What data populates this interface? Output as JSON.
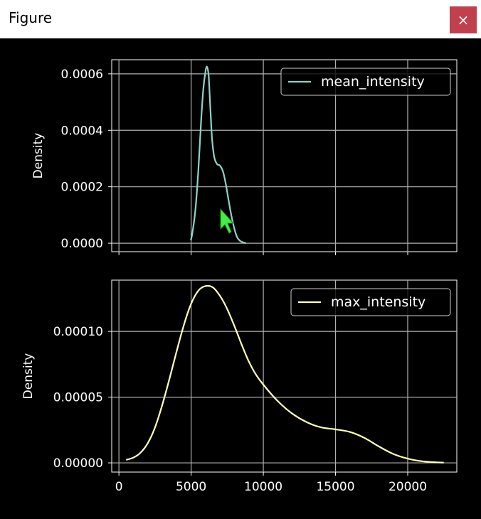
{
  "window": {
    "title": "Figure",
    "close_glyph": "×"
  },
  "colors": {
    "background": "#000000",
    "grid": "#b0b0b0",
    "axis": "#ffffff",
    "text": "#ffffff",
    "series_top": "#8dd3c7",
    "series_bottom": "#ffffb3",
    "cursor": "#44ee44"
  },
  "chart_data": [
    {
      "type": "line",
      "kind": "kde",
      "ylabel": "Density",
      "xlim": [
        -500,
        23400
      ],
      "ylim": [
        -3e-05,
        0.00065
      ],
      "yticks": [
        0,
        0.0002,
        0.0004,
        0.0006
      ],
      "ytick_labels": [
        "0.0000",
        "0.0002",
        "0.0004",
        "0.0006"
      ],
      "shared_x_ticklabels_hidden": true,
      "grid": true,
      "legend": "upper right",
      "series": [
        {
          "name": "mean_intensity",
          "x": [
            4980,
            5100,
            5300,
            5500,
            5700,
            5850,
            6000,
            6100,
            6200,
            6250,
            6350,
            6450,
            6600,
            6800,
            7000,
            7200,
            7400,
            7600,
            7800,
            8000,
            8200,
            8400,
            8600,
            8800
          ],
          "y": [
            1e-05,
            4e-05,
            0.00012,
            0.00026,
            0.00044,
            0.00055,
            0.00061,
            0.000625,
            0.0006,
            0.00056,
            0.00046,
            0.00037,
            0.000305,
            0.00028,
            0.000275,
            0.000255,
            0.00021,
            0.00015,
            9.5e-05,
            5e-05,
            2e-05,
            8e-06,
            3e-06,
            0.0
          ]
        }
      ]
    },
    {
      "type": "line",
      "kind": "kde",
      "ylabel": "Density",
      "xlim": [
        -500,
        23400
      ],
      "ylim": [
        -7e-06,
        0.000139
      ],
      "yticks": [
        0,
        5e-05,
        0.0001
      ],
      "ytick_labels": [
        "0.00000",
        "0.00005",
        "0.00010"
      ],
      "xticks": [
        0,
        5000,
        10000,
        15000,
        20000
      ],
      "xtick_labels": [
        "0",
        "5000",
        "10000",
        "15000",
        "20000"
      ],
      "grid": true,
      "legend": "upper right",
      "series": [
        {
          "name": "max_intensity",
          "x": [
            500,
            1000,
            1500,
            2000,
            2500,
            3000,
            3500,
            4000,
            4500,
            5000,
            5500,
            6000,
            6500,
            7000,
            7500,
            8000,
            8500,
            9000,
            9500,
            10000,
            11000,
            12000,
            13000,
            14000,
            15000,
            16000,
            17000,
            18000,
            19000,
            20000,
            21000,
            22000,
            22500
          ],
          "y": [
            2.3e-06,
            4e-06,
            7.8e-06,
            1.5e-05,
            2.7e-05,
            4.4e-05,
            6.4e-05,
            8.5e-05,
            0.000105,
            0.000121,
            0.000131,
            0.0001345,
            0.0001335,
            0.000127,
            0.000117,
            0.000104,
            9e-05,
            7.7e-05,
            6.7e-05,
            5.95e-05,
            4.7e-05,
            3.75e-05,
            3.1e-05,
            2.7e-05,
            2.55e-05,
            2.35e-05,
            1.9e-05,
            1.25e-05,
            6.8e-06,
            3.2e-06,
            1.2e-06,
            4e-07,
            2e-07
          ]
        }
      ]
    }
  ]
}
